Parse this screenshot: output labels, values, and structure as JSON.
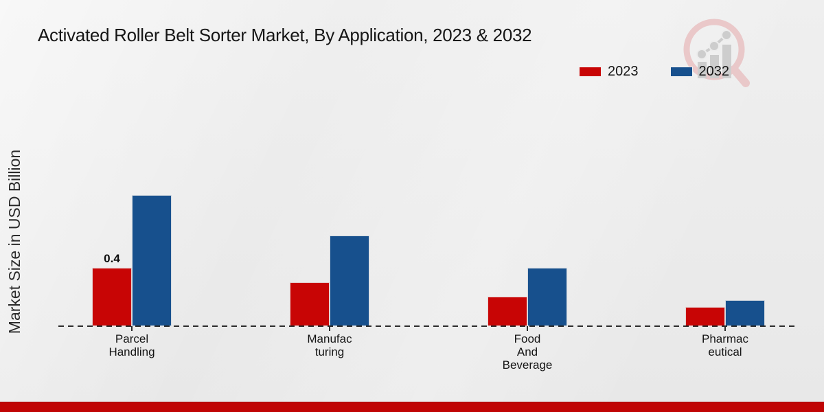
{
  "title": "Activated Roller Belt Sorter Market, By Application, 2023 & 2032",
  "icons": {
    "watermark": "magnifier-bar-chart-logo-icon"
  },
  "footer": {
    "accent_color": "#c00404"
  },
  "colors": {
    "series_2023": "#c80505",
    "series_2032": "#17508d",
    "background": "#ededed",
    "axis": "#2b2b2b"
  },
  "chart_data": {
    "type": "bar",
    "title": "Activated Roller Belt Sorter Market, By Application, 2023 & 2032",
    "xlabel": "",
    "ylabel": "Market Size in USD Billion",
    "categories": [
      "Parcel Handling",
      "Manufacturing",
      "Food And Beverage",
      "Pharmaceutical"
    ],
    "category_labels_display": [
      [
        "Parcel",
        "Handling"
      ],
      [
        "Manufac",
        "turing"
      ],
      [
        "Food",
        "And",
        "Beverage"
      ],
      [
        "Pharmac",
        "eutical"
      ]
    ],
    "series": [
      {
        "name": "2023",
        "color": "#c80505",
        "values": [
          0.4,
          0.3,
          0.2,
          0.13
        ]
      },
      {
        "name": "2032",
        "color": "#17508d",
        "values": [
          0.9,
          0.62,
          0.4,
          0.18
        ]
      }
    ],
    "data_labels": [
      {
        "series": "2023",
        "category_index": 0,
        "text": "0.4"
      }
    ],
    "ylim": [
      0,
      1.0
    ],
    "y_axis_ticks_visible": false,
    "grid": false,
    "x_axis_style": "dashed",
    "legend_position": "top-right"
  }
}
